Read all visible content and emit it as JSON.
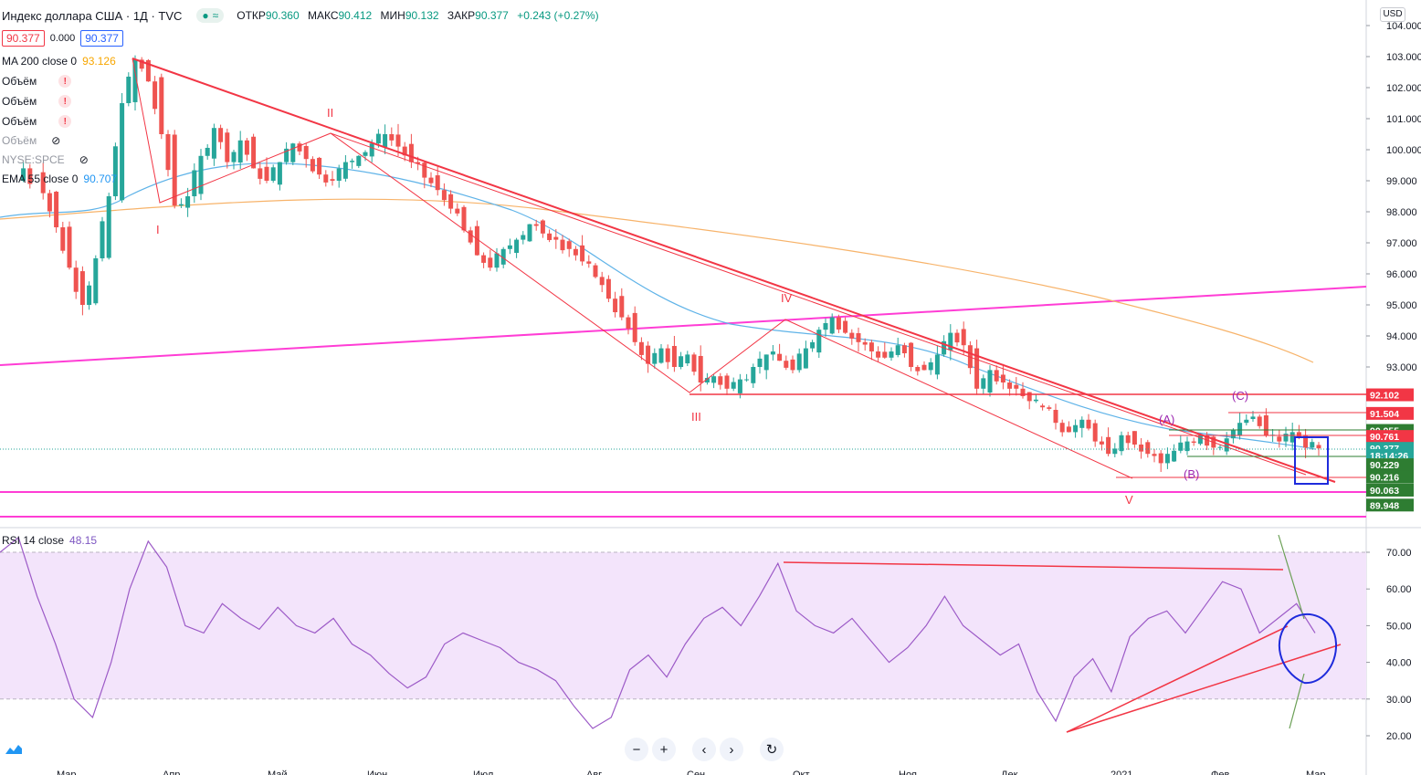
{
  "header": {
    "symbol_title": "Индекс доллара США · 1Д · TVC",
    "ohlc": {
      "open_label": "ОТКР",
      "open": "90.360",
      "high_label": "МАКС",
      "high": "90.412",
      "low_label": "МИН",
      "low": "90.132",
      "close_label": "ЗАКР",
      "close": "90.377",
      "change": "+0.243 (+0.27%)"
    },
    "bid": "90.377",
    "spread": "0.000",
    "ask": "90.377"
  },
  "indicators": [
    {
      "label": "MA 200 close 0",
      "value": "93.126"
    },
    {
      "label": "Объём",
      "value": "!"
    },
    {
      "label": "Объём",
      "value": "!"
    },
    {
      "label": "Объём",
      "value": "!"
    },
    {
      "label": "Объём",
      "value": ""
    },
    {
      "label": "NYSE:SPCE",
      "value": ""
    },
    {
      "label": "EMA 55 close 0",
      "value": "90.707"
    }
  ],
  "rsi": {
    "label": "RSI 14 close",
    "value": "48.15"
  },
  "currency_button": "USD",
  "colors": {
    "bull": "#26a69a",
    "bear": "#ef5350",
    "ma200": "#f7b36a",
    "ema55": "#5fb3e8",
    "magenta": "#ff3dd5",
    "red_line": "#f23645",
    "rsi_line": "#9c5ac7",
    "rsi_fill": "#f3e4fb"
  },
  "chart_data": [
    {
      "type": "candlestick",
      "title": "",
      "ylim": [
        89.4,
        104.4
      ],
      "y_ticks": [
        "104.000",
        "103.000",
        "102.000",
        "101.000",
        "100.000",
        "99.000",
        "98.000",
        "97.000",
        "96.000",
        "95.000",
        "94.000",
        "93.000"
      ],
      "x_ticks": [
        "Мар",
        "Апр",
        "Май",
        "Июн",
        "Июл",
        "Авг",
        "Сен",
        "Окт",
        "Ноя",
        "Дек",
        "2021",
        "Фев",
        "Мар"
      ],
      "wave_labels": [
        "I",
        "II",
        "III",
        "IV",
        "V",
        "(A)",
        "(B)",
        "(C)"
      ],
      "price_tags": [
        {
          "text": "92.102",
          "price": 92.102,
          "color": "#f23645"
        },
        {
          "text": "91.504",
          "price": 91.504,
          "color": "#f23645"
        },
        {
          "text": "90.955",
          "price": 90.955,
          "color": "#2e7d32"
        },
        {
          "text": "90.761",
          "price": 90.761,
          "color": "#f23645"
        },
        {
          "text": "90.377",
          "price": 90.377,
          "color": "#26a69a"
        },
        {
          "text": "18:14:26",
          "price": 90.15,
          "color": "#26a69a"
        },
        {
          "text": "90.229",
          "price": 89.85,
          "color": "#2e7d32"
        },
        {
          "text": "90.216",
          "price": 89.45,
          "color": "#2e7d32"
        },
        {
          "text": "90.063",
          "price": 89.03,
          "color": "#2e7d32"
        },
        {
          "text": "89.948",
          "price": 88.55,
          "color": "#2e7d32"
        }
      ],
      "close_path": [
        [
          0,
          99.0
        ],
        [
          3,
          99.4
        ],
        [
          6,
          98.6
        ],
        [
          8,
          97.5
        ],
        [
          10,
          96.2
        ],
        [
          12,
          95.0
        ],
        [
          14,
          96.5
        ],
        [
          16,
          98.5
        ],
        [
          18,
          101.5
        ],
        [
          20,
          102.9
        ],
        [
          22,
          102.2
        ],
        [
          24,
          100.5
        ],
        [
          26,
          98.2
        ],
        [
          28,
          98.5
        ],
        [
          30,
          99.8
        ],
        [
          32,
          100.7
        ],
        [
          34,
          99.6
        ],
        [
          36,
          100.3
        ],
        [
          38,
          99.4
        ],
        [
          40,
          99.0
        ],
        [
          42,
          99.6
        ],
        [
          44,
          100.2
        ],
        [
          46,
          99.7
        ],
        [
          48,
          99.2
        ],
        [
          50,
          99.0
        ],
        [
          52,
          99.6
        ],
        [
          54,
          99.8
        ],
        [
          56,
          100.2
        ],
        [
          58,
          100.5
        ],
        [
          60,
          100.1
        ],
        [
          62,
          99.6
        ],
        [
          64,
          99.1
        ],
        [
          66,
          98.7
        ],
        [
          68,
          98.1
        ],
        [
          70,
          97.4
        ],
        [
          72,
          96.6
        ],
        [
          74,
          96.2
        ],
        [
          76,
          96.8
        ],
        [
          78,
          97.1
        ],
        [
          80,
          97.6
        ],
        [
          82,
          97.3
        ],
        [
          84,
          97.1
        ],
        [
          86,
          96.8
        ],
        [
          88,
          96.4
        ],
        [
          90,
          95.9
        ],
        [
          92,
          95.2
        ],
        [
          94,
          94.6
        ],
        [
          96,
          93.8
        ],
        [
          98,
          93.1
        ],
        [
          100,
          93.6
        ],
        [
          102,
          93.0
        ],
        [
          104,
          93.4
        ],
        [
          106,
          92.5
        ],
        [
          108,
          92.7
        ],
        [
          110,
          92.3
        ],
        [
          112,
          92.6
        ],
        [
          114,
          93.0
        ],
        [
          116,
          93.4
        ],
        [
          118,
          93.2
        ],
        [
          120,
          92.9
        ],
        [
          122,
          93.6
        ],
        [
          124,
          94.2
        ],
        [
          126,
          94.6
        ],
        [
          128,
          94.1
        ],
        [
          130,
          93.8
        ],
        [
          132,
          93.5
        ],
        [
          134,
          93.3
        ],
        [
          136,
          93.7
        ],
        [
          138,
          93.0
        ],
        [
          140,
          92.9
        ],
        [
          142,
          93.4
        ],
        [
          144,
          94.1
        ],
        [
          146,
          93.7
        ],
        [
          148,
          92.3
        ],
        [
          150,
          92.9
        ],
        [
          152,
          92.5
        ],
        [
          154,
          92.3
        ],
        [
          156,
          91.9
        ],
        [
          158,
          91.7
        ],
        [
          160,
          91.2
        ],
        [
          162,
          90.9
        ],
        [
          164,
          91.3
        ],
        [
          166,
          90.6
        ],
        [
          168,
          90.2
        ],
        [
          170,
          90.8
        ],
        [
          172,
          90.5
        ],
        [
          174,
          90.2
        ],
        [
          176,
          89.9
        ],
        [
          178,
          90.3
        ],
        [
          180,
          90.6
        ],
        [
          182,
          90.8
        ],
        [
          184,
          90.4
        ],
        [
          186,
          90.7
        ],
        [
          188,
          91.2
        ],
        [
          190,
          91.4
        ],
        [
          192,
          90.8
        ],
        [
          194,
          90.6
        ],
        [
          196,
          90.9
        ],
        [
          198,
          90.4
        ],
        [
          200,
          90.377
        ]
      ]
    },
    {
      "type": "line",
      "title": "",
      "ylim": [
        15,
        75
      ],
      "y_ticks": [
        "70.00",
        "60.00",
        "50.00",
        "40.00",
        "30.00",
        "20.00"
      ],
      "series": [
        {
          "values": [
            70,
            74,
            58,
            45,
            30,
            25,
            40,
            60,
            73,
            66,
            50,
            48,
            56,
            52,
            49,
            55,
            50,
            48,
            52,
            45,
            42,
            37,
            33,
            36,
            45,
            48,
            46,
            44,
            40,
            38,
            35,
            28,
            22,
            25,
            38,
            42,
            36,
            45,
            52,
            55,
            50,
            58,
            67,
            54,
            50,
            48,
            52,
            46,
            40,
            44,
            50,
            58,
            50,
            46,
            42,
            45,
            32,
            24,
            36,
            41,
            32,
            47,
            52,
            54,
            48,
            55,
            62,
            60,
            48,
            52,
            56,
            48
          ]
        }
      ]
    }
  ]
}
